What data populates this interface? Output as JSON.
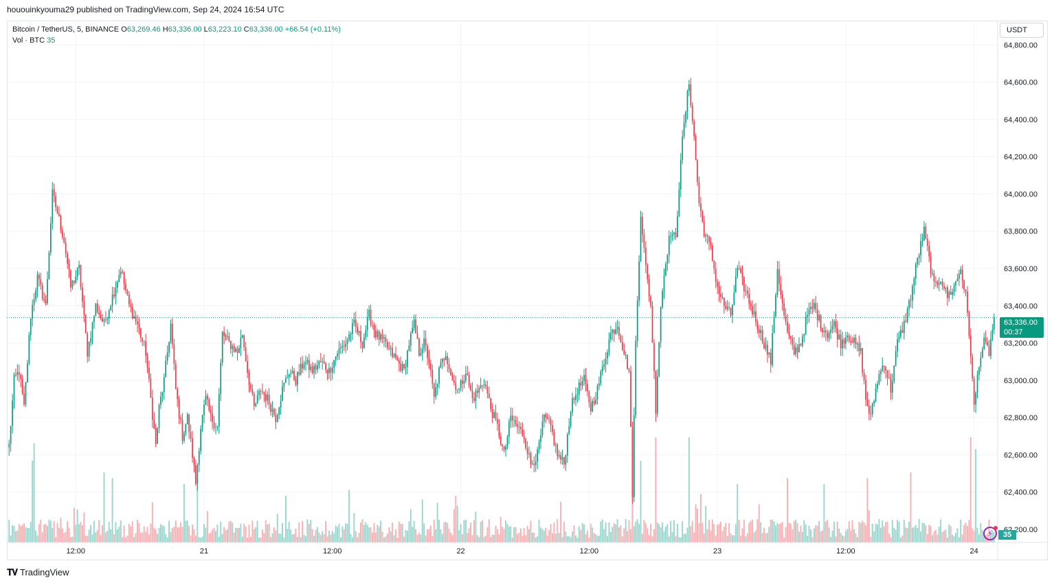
{
  "header": {
    "publish_line": "hououinkyouma29 published on TradingView.com, Sep 24, 2024 16:54 UTC"
  },
  "legend": {
    "symbol": "Bitcoin / TetherUS, 5, BINANCE",
    "open_label": "O",
    "open": "63,269.46",
    "high_label": "H",
    "high": "63,336.00",
    "low_label": "L",
    "low": "63,223.10",
    "close_label": "C",
    "close": "63,336.00",
    "change": "+66.54 (+0.11%)",
    "vol_label": "Vol · BTC",
    "vol_value": "35"
  },
  "price_scale": {
    "currency_button": "USDT",
    "last_price": "63,336.00",
    "countdown": "00:37",
    "volume_tag": "35"
  },
  "footer": {
    "brand": "TradingView",
    "logo_icon": "tradingview-logo-icon"
  },
  "colors": {
    "up": "#089981",
    "down": "#f23645",
    "vol_up": "#9ad6ce",
    "vol_down": "#f7b1b4",
    "grid": "#f0f3fa"
  },
  "chart_data": {
    "type": "candlestick",
    "interval": "5",
    "y_ticks": [
      "62,200.00",
      "62,400.00",
      "62,600.00",
      "62,800.00",
      "63,000.00",
      "63,200.00",
      "63,400.00",
      "63,600.00",
      "63,800.00",
      "64,000.00",
      "64,200.00",
      "64,400.00",
      "64,600.00",
      "64,800.00"
    ],
    "x_ticks": [
      "12:00",
      "21",
      "12:00",
      "22",
      "12:00",
      "23",
      "12:00",
      "24",
      "12:00"
    ],
    "ylim": [
      62130,
      64930
    ],
    "last_price": 63336,
    "price_path": [
      [
        0,
        62650
      ],
      [
        3,
        63000
      ],
      [
        6,
        63050
      ],
      [
        9,
        62850
      ],
      [
        13,
        63350
      ],
      [
        17,
        63550
      ],
      [
        22,
        63400
      ],
      [
        26,
        64000
      ],
      [
        29,
        63900
      ],
      [
        33,
        63750
      ],
      [
        37,
        63500
      ],
      [
        42,
        63600
      ],
      [
        47,
        63150
      ],
      [
        52,
        63400
      ],
      [
        57,
        63300
      ],
      [
        62,
        63450
      ],
      [
        67,
        63600
      ],
      [
        72,
        63400
      ],
      [
        77,
        63300
      ],
      [
        82,
        63150
      ],
      [
        85,
        62900
      ],
      [
        88,
        62650
      ],
      [
        90,
        62850
      ],
      [
        93,
        63000
      ],
      [
        97,
        63300
      ],
      [
        100,
        62950
      ],
      [
        104,
        62700
      ],
      [
        107,
        62800
      ],
      [
        110,
        62600
      ],
      [
        112,
        62450
      ],
      [
        115,
        62750
      ],
      [
        118,
        62900
      ],
      [
        121,
        62800
      ],
      [
        125,
        62750
      ],
      [
        128,
        63250
      ],
      [
        132,
        63200
      ],
      [
        137,
        63150
      ],
      [
        140,
        63250
      ],
      [
        143,
        63050
      ],
      [
        147,
        62850
      ],
      [
        151,
        62950
      ],
      [
        155,
        62900
      ],
      [
        160,
        62800
      ],
      [
        164,
        62950
      ],
      [
        168,
        63050
      ],
      [
        172,
        63000
      ],
      [
        177,
        63100
      ],
      [
        182,
        63050
      ],
      [
        187,
        63100
      ],
      [
        192,
        63050
      ],
      [
        197,
        63150
      ],
      [
        202,
        63200
      ],
      [
        207,
        63300
      ],
      [
        212,
        63200
      ],
      [
        216,
        63350
      ],
      [
        220,
        63250
      ],
      [
        225,
        63200
      ],
      [
        229,
        63150
      ],
      [
        233,
        63100
      ],
      [
        237,
        63050
      ],
      [
        240,
        63200
      ],
      [
        243,
        63300
      ],
      [
        246,
        63150
      ],
      [
        249,
        63200
      ],
      [
        252,
        63100
      ],
      [
        255,
        62900
      ],
      [
        258,
        63050
      ],
      [
        262,
        63150
      ],
      [
        266,
        63000
      ],
      [
        270,
        62950
      ],
      [
        274,
        63050
      ],
      [
        278,
        62900
      ],
      [
        282,
        62950
      ],
      [
        285,
        63000
      ],
      [
        289,
        62850
      ],
      [
        293,
        62750
      ],
      [
        297,
        62600
      ],
      [
        301,
        62800
      ],
      [
        305,
        62750
      ],
      [
        309,
        62700
      ],
      [
        313,
        62550
      ],
      [
        317,
        62600
      ],
      [
        321,
        62800
      ],
      [
        325,
        62750
      ],
      [
        329,
        62600
      ],
      [
        333,
        62550
      ],
      [
        337,
        62850
      ],
      [
        341,
        62950
      ],
      [
        345,
        63000
      ],
      [
        349,
        62850
      ],
      [
        353,
        62950
      ],
      [
        357,
        63100
      ],
      [
        361,
        63250
      ],
      [
        365,
        63300
      ],
      [
        369,
        63150
      ],
      [
        372,
        63050
      ],
      [
        374,
        62400
      ],
      [
        376,
        63200
      ],
      [
        379,
        63900
      ],
      [
        382,
        63600
      ],
      [
        385,
        63400
      ],
      [
        388,
        62850
      ],
      [
        391,
        63400
      ],
      [
        394,
        63650
      ],
      [
        397,
        63800
      ],
      [
        400,
        63750
      ],
      [
        403,
        64200
      ],
      [
        406,
        64450
      ],
      [
        408,
        64600
      ],
      [
        411,
        64300
      ],
      [
        414,
        63950
      ],
      [
        417,
        63800
      ],
      [
        421,
        63700
      ],
      [
        425,
        63500
      ],
      [
        429,
        63400
      ],
      [
        433,
        63350
      ],
      [
        437,
        63600
      ],
      [
        441,
        63500
      ],
      [
        445,
        63400
      ],
      [
        449,
        63300
      ],
      [
        453,
        63200
      ],
      [
        457,
        63100
      ],
      [
        461,
        63600
      ],
      [
        464,
        63400
      ],
      [
        467,
        63250
      ],
      [
        471,
        63150
      ],
      [
        475,
        63200
      ],
      [
        479,
        63350
      ],
      [
        483,
        63400
      ],
      [
        487,
        63300
      ],
      [
        491,
        63250
      ],
      [
        495,
        63300
      ],
      [
        499,
        63200
      ],
      [
        503,
        63250
      ],
      [
        507,
        63200
      ],
      [
        511,
        63150
      ],
      [
        514,
        62900
      ],
      [
        517,
        62800
      ],
      [
        521,
        63000
      ],
      [
        525,
        63100
      ],
      [
        529,
        62950
      ],
      [
        533,
        63200
      ],
      [
        537,
        63300
      ],
      [
        541,
        63450
      ],
      [
        545,
        63650
      ],
      [
        549,
        63800
      ],
      [
        552,
        63650
      ],
      [
        555,
        63500
      ],
      [
        559,
        63550
      ],
      [
        563,
        63450
      ],
      [
        567,
        63500
      ],
      [
        571,
        63600
      ],
      [
        574,
        63450
      ],
      [
        577,
        63150
      ],
      [
        579,
        62850
      ],
      [
        582,
        63100
      ],
      [
        585,
        63200
      ],
      [
        588,
        63150
      ],
      [
        591,
        63336
      ]
    ],
    "volume_spikes": [
      [
        14,
        0.7
      ],
      [
        15,
        0.85
      ],
      [
        57,
        0.6
      ],
      [
        62,
        0.55
      ],
      [
        105,
        0.5
      ],
      [
        113,
        0.55
      ],
      [
        166,
        0.4
      ],
      [
        204,
        0.45
      ],
      [
        268,
        0.4
      ],
      [
        374,
        0.95
      ],
      [
        379,
        0.7
      ],
      [
        388,
        0.9
      ],
      [
        408,
        0.9
      ],
      [
        437,
        0.5
      ],
      [
        467,
        0.55
      ],
      [
        489,
        0.5
      ],
      [
        515,
        0.55
      ],
      [
        541,
        0.6
      ],
      [
        577,
        0.9
      ],
      [
        580,
        0.8
      ]
    ],
    "volume_max_btc": 420
  }
}
